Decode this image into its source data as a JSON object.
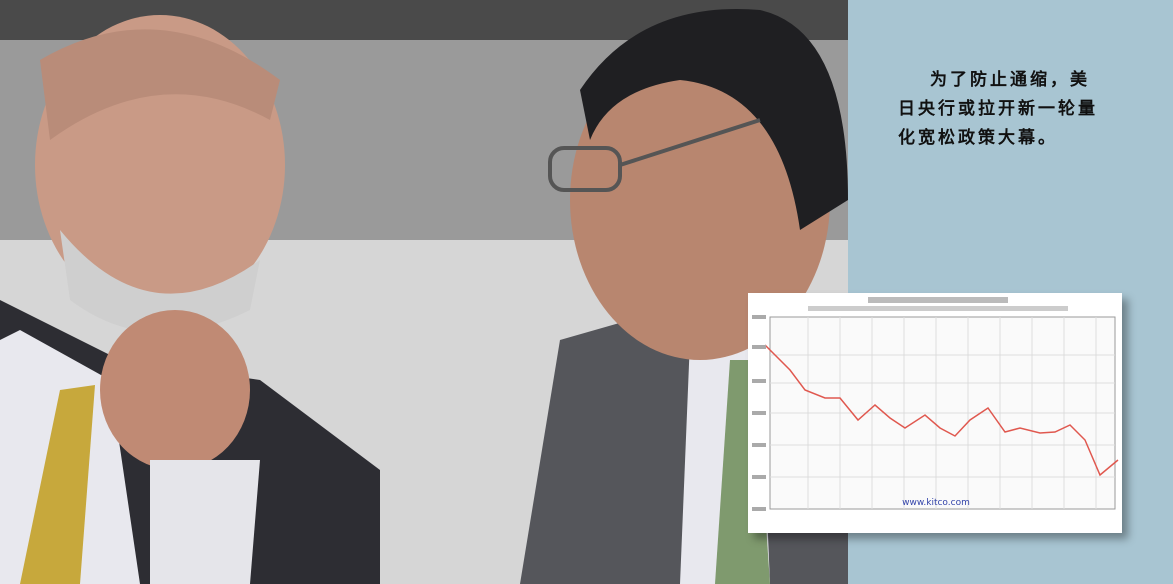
{
  "caption": {
    "lines": [
      "为了防止通缩，美",
      "日央行或拉开新一轮量",
      "化宽松政策大幕。"
    ]
  },
  "chart_inset": {
    "source": "www.kitco.com"
  }
}
